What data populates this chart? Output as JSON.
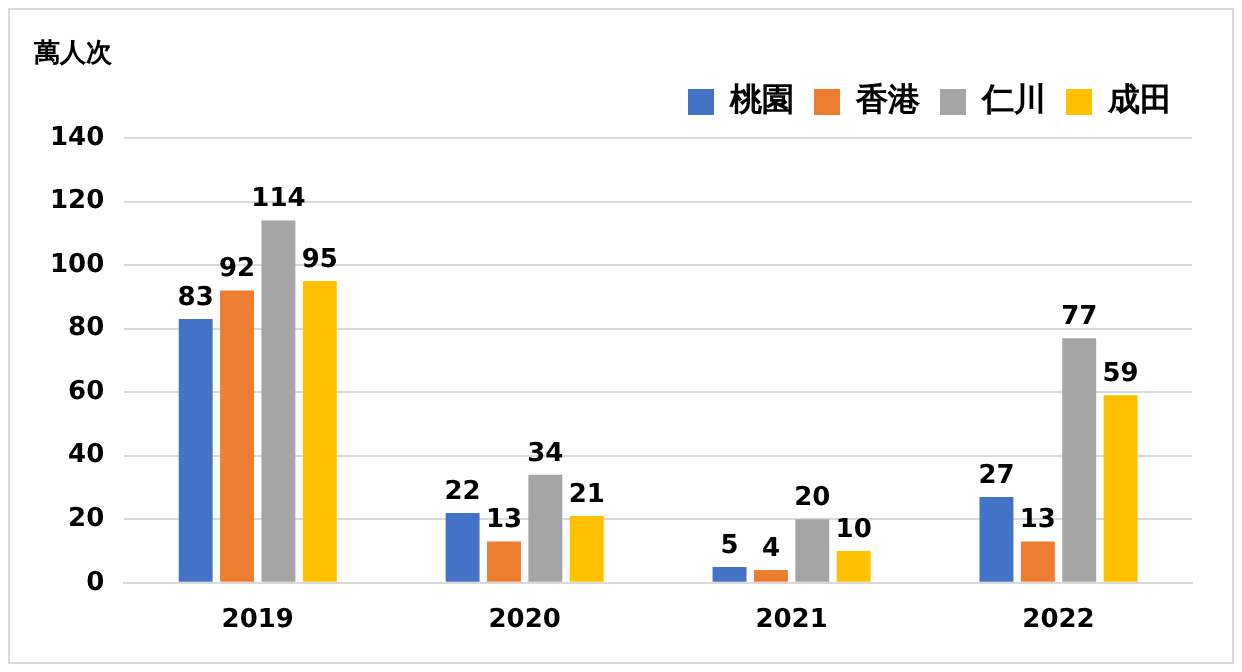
{
  "chart_data": {
    "type": "bar",
    "ylabel": "萬人次",
    "categories": [
      "2019",
      "2020",
      "2021",
      "2022"
    ],
    "series": [
      {
        "name": "桃園",
        "color": "#4472c4",
        "values": [
          83,
          22,
          5,
          27
        ]
      },
      {
        "name": "香港",
        "color": "#ed7d31",
        "values": [
          92,
          13,
          4,
          13
        ]
      },
      {
        "name": "仁川",
        "color": "#a5a5a5",
        "values": [
          114,
          34,
          20,
          77
        ]
      },
      {
        "name": "成田",
        "color": "#ffc000",
        "values": [
          95,
          21,
          10,
          59
        ]
      }
    ],
    "ylim": [
      0,
      140
    ],
    "yticks": [
      0,
      20,
      40,
      60,
      80,
      100,
      120,
      140
    ],
    "grid": "y",
    "legend": "top right",
    "data_labels": true
  }
}
